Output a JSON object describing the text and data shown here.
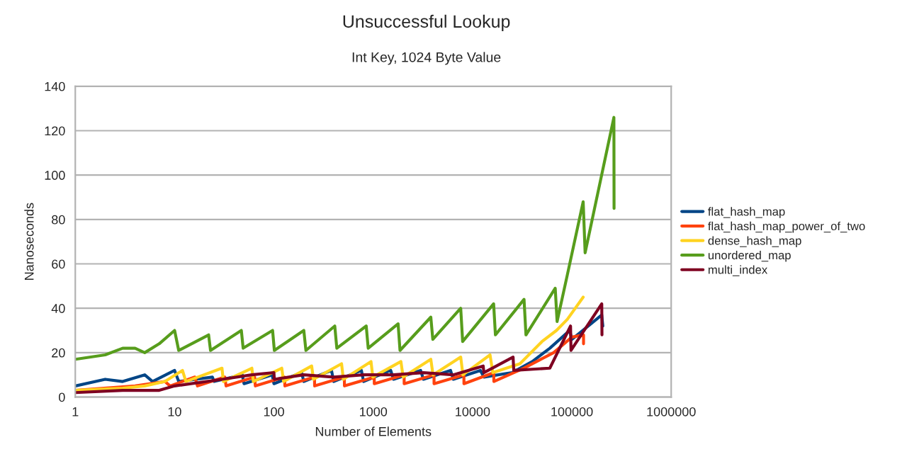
{
  "chart_data": {
    "type": "line",
    "title": "Unsuccessful Lookup",
    "subtitle": "Int Key, 1024 Byte Value",
    "xlabel": "Number of Elements",
    "ylabel": "Nanoseconds",
    "log": "x",
    "xlim": [
      1,
      1000000
    ],
    "xticks": [
      1,
      10,
      100,
      1000,
      10000,
      100000,
      1000000
    ],
    "ylim": [
      0,
      140
    ],
    "yticks": [
      0,
      20,
      40,
      60,
      80,
      100,
      120,
      140
    ],
    "grid": "y",
    "legend": "right",
    "marker": "none",
    "line_style": "solid",
    "series": [
      {
        "name": "flat_hash_map",
        "color": "#004586",
        "x": [
          1,
          2,
          3,
          5,
          6,
          10,
          11,
          24,
          25,
          48,
          50,
          96,
          100,
          190,
          200,
          380,
          400,
          760,
          800,
          1500,
          1600,
          3000,
          3200,
          6000,
          6400,
          12000,
          13000,
          25000,
          40000,
          60000,
          95000,
          100000,
          200000,
          205000
        ],
        "values": [
          5,
          8,
          7,
          10,
          7,
          12,
          7,
          9,
          7,
          10,
          6,
          10,
          6,
          11,
          7,
          12,
          7,
          12,
          7,
          12,
          8,
          12,
          8,
          12,
          8,
          12,
          9,
          11,
          16,
          22,
          30,
          26,
          37,
          32
        ]
      },
      {
        "name": "flat_hash_map_power_of_two",
        "color": "#ff420e",
        "x": [
          1,
          4,
          8,
          9,
          16,
          17,
          32,
          33,
          64,
          65,
          128,
          129,
          256,
          257,
          512,
          513,
          1024,
          1025,
          2048,
          2049,
          4096,
          4097,
          8192,
          8193,
          16384,
          16385,
          32768,
          65536,
          100000,
          131072,
          131073
        ],
        "values": [
          3,
          5,
          7,
          5,
          9,
          5,
          9,
          5,
          9,
          5,
          9,
          5,
          9,
          5,
          9,
          5,
          9,
          6,
          10,
          6,
          10,
          6,
          10,
          6,
          11,
          7,
          13,
          20,
          27,
          28,
          24
        ]
      },
      {
        "name": "dense_hash_map",
        "color": "#ffd320",
        "x": [
          1,
          3,
          5,
          8,
          12,
          13,
          30,
          31,
          60,
          62,
          120,
          125,
          240,
          250,
          480,
          500,
          950,
          990,
          1900,
          2000,
          3800,
          4000,
          7600,
          8000,
          15000,
          16000,
          30000,
          50000,
          70000,
          90000,
          130000
        ],
        "values": [
          3,
          4,
          5,
          7,
          12,
          7,
          13,
          7,
          13,
          7,
          13,
          7,
          14,
          8,
          15,
          8,
          16,
          9,
          16,
          9,
          17,
          10,
          18,
          10,
          19,
          11,
          15,
          25,
          30,
          35,
          45
        ]
      },
      {
        "name": "unordered_map",
        "color": "#579d1c",
        "x": [
          1,
          2,
          3,
          4,
          5,
          7,
          10,
          11,
          22,
          23,
          47,
          49,
          97,
          101,
          200,
          210,
          410,
          430,
          850,
          890,
          1780,
          1860,
          3800,
          3980,
          7600,
          7950,
          16300,
          17000,
          33000,
          34500,
          68000,
          71000,
          90000,
          130000,
          136000,
          265000,
          266000
        ],
        "values": [
          17,
          19,
          22,
          22,
          20,
          24,
          30,
          21,
          28,
          21,
          30,
          22,
          30,
          21,
          30,
          21,
          32,
          22,
          32,
          22,
          33,
          21,
          36,
          26,
          40,
          25,
          42,
          28,
          44,
          28,
          49,
          34,
          55,
          88,
          65,
          126,
          85
        ]
      },
      {
        "name": "multi_index",
        "color": "#7e0021",
        "x": [
          1,
          3,
          7,
          10,
          30,
          60,
          100,
          101,
          200,
          400,
          800,
          1600,
          3200,
          6400,
          12800,
          13000,
          25600,
          26000,
          60000,
          97000,
          98000,
          200000,
          201000
        ],
        "values": [
          2,
          3,
          3,
          5,
          8,
          10,
          11,
          8,
          10,
          9,
          10,
          10,
          11,
          10,
          14,
          11,
          18,
          12,
          13,
          32,
          21,
          42,
          28
        ]
      }
    ]
  }
}
